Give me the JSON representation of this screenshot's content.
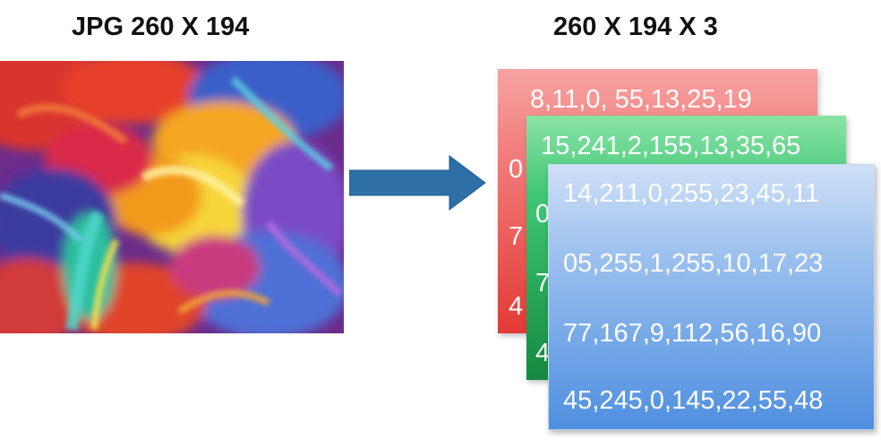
{
  "titles": {
    "left": "JPG 260 X 194",
    "right": "260 X 194 X 3"
  },
  "channels": {
    "red": {
      "color": "#e23a36",
      "rows": [
        "8,11,0, 55,13,25,19",
        "0",
        "7",
        "4"
      ]
    },
    "green": {
      "color": "#15893f",
      "rows": [
        "15,241,2,155,13,35,65",
        "0",
        "7",
        "4"
      ]
    },
    "blue": {
      "color": "#4f8fe0",
      "rows": [
        "14,211,0,255,23,45,11",
        "05,255,1,255,10,17,23",
        "77,167,9,112,56,16,90",
        "45,245,0,145,22,55,48"
      ]
    }
  },
  "arrow": {
    "color": "#2e6fa8",
    "direction": "right"
  }
}
